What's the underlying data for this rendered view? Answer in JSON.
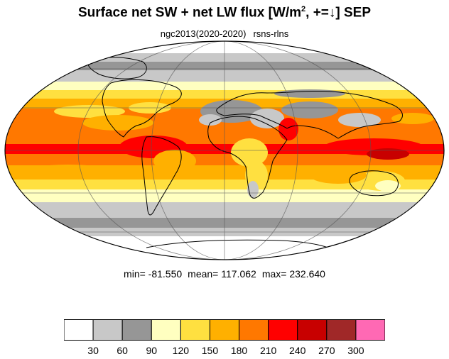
{
  "title": {
    "main": "Surface net SW + net LW flux [W/m",
    "sup": "2",
    "suffix": ", +=↓]  SEP"
  },
  "subtitle": {
    "left": "ngc2013(2020-2020)",
    "right": "rsns-rlns"
  },
  "stats": {
    "min": "min= -81.550",
    "mean": "mean= 117.062",
    "max": "max= 232.640"
  },
  "colorbar": {
    "colors": [
      "#ffffff",
      "#c8c8c8",
      "#969696",
      "#ffffc0",
      "#ffe040",
      "#ffb000",
      "#ff7800",
      "#ff0000",
      "#c80000",
      "#a02828",
      "#ff69b4"
    ],
    "ticks": [
      "30",
      "60",
      "90",
      "120",
      "150",
      "180",
      "210",
      "240",
      "270",
      "300"
    ]
  },
  "map": {
    "projection": "mollweide",
    "grid": true
  }
}
